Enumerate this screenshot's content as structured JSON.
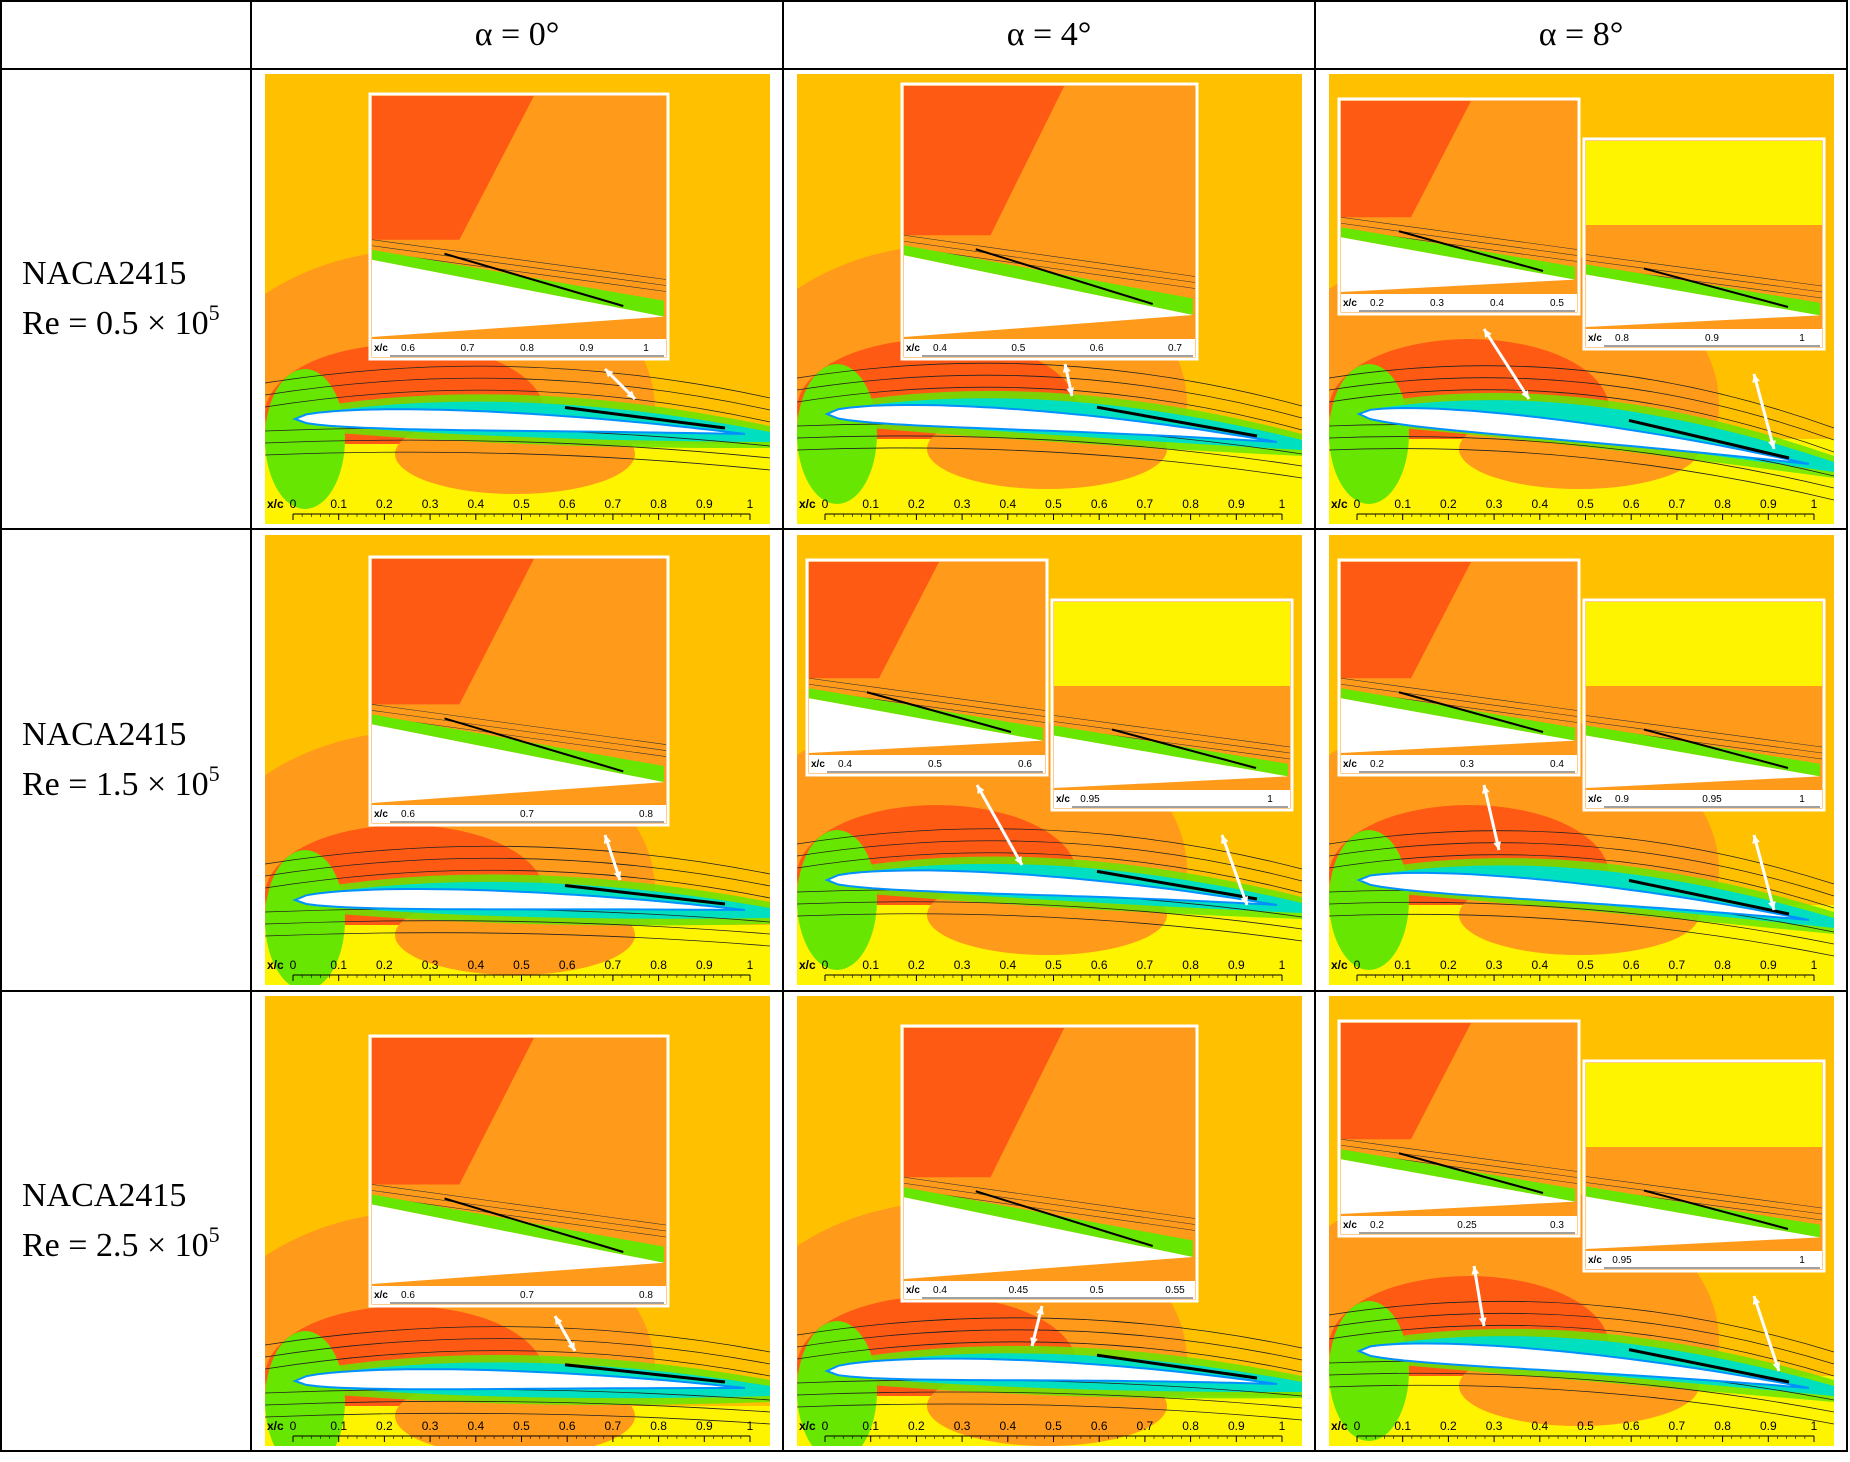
{
  "columns": [
    {
      "label": "α = 0°"
    },
    {
      "label": "α = 4°"
    },
    {
      "label": "α = 8°"
    }
  ],
  "rows": [
    {
      "airfoil": "NACA2415",
      "re_prefix": "Re = 0.5 × 10",
      "re_exp": "5"
    },
    {
      "airfoil": "NACA2415",
      "re_prefix": "Re = 1.5 × 10",
      "re_exp": "5"
    },
    {
      "airfoil": "NACA2415",
      "re_prefix": "Re = 2.5 × 10",
      "re_exp": "5"
    }
  ],
  "axis": {
    "label": "x/c",
    "ticks": [
      "0",
      "0.1",
      "0.2",
      "0.3",
      "0.4",
      "0.5",
      "0.6",
      "0.7",
      "0.8",
      "0.9",
      "1"
    ]
  },
  "colors": {
    "background": "#ffc000",
    "orange": "#ff9a1a",
    "red": "#ff5a14",
    "darkred": "#ff2000",
    "yellow": "#ffe000",
    "lightyellow": "#fff400",
    "green": "#66e600",
    "cyan": "#00e0c0",
    "blue": "#0090ff",
    "inset_frame": "#ffffff"
  },
  "panels": [
    {
      "row": 0,
      "col": 0,
      "insets": [
        {
          "label": "x/c",
          "ticks": [
            "0.6",
            "0.7",
            "0.8",
            "0.9",
            "1"
          ]
        }
      ]
    },
    {
      "row": 0,
      "col": 1,
      "insets": [
        {
          "label": "x/c",
          "ticks": [
            "0.4",
            "0.5",
            "0.6",
            "0.7"
          ]
        }
      ]
    },
    {
      "row": 0,
      "col": 2,
      "insets": [
        {
          "label": "x/c",
          "ticks": [
            "0.2",
            "0.3",
            "0.4",
            "0.5"
          ]
        },
        {
          "label": "x/c",
          "ticks": [
            "0.8",
            "0.9",
            "1"
          ]
        }
      ]
    },
    {
      "row": 1,
      "col": 0,
      "insets": [
        {
          "label": "x/c",
          "ticks": [
            "0.6",
            "0.7",
            "0.8"
          ]
        }
      ]
    },
    {
      "row": 1,
      "col": 1,
      "insets": [
        {
          "label": "x/c",
          "ticks": [
            "0.4",
            "0.5",
            "0.6"
          ]
        },
        {
          "label": "x/c",
          "ticks": [
            "0.95",
            "1"
          ]
        }
      ]
    },
    {
      "row": 1,
      "col": 2,
      "insets": [
        {
          "label": "x/c",
          "ticks": [
            "0.2",
            "0.3",
            "0.4"
          ]
        },
        {
          "label": "x/c",
          "ticks": [
            "0.9",
            "0.95",
            "1"
          ]
        }
      ]
    },
    {
      "row": 2,
      "col": 0,
      "insets": [
        {
          "label": "x/c",
          "ticks": [
            "0.6",
            "0.7",
            "0.8"
          ]
        }
      ]
    },
    {
      "row": 2,
      "col": 1,
      "insets": [
        {
          "label": "x/c",
          "ticks": [
            "0.4",
            "0.45",
            "0.5",
            "0.55"
          ]
        }
      ]
    },
    {
      "row": 2,
      "col": 2,
      "insets": [
        {
          "label": "x/c",
          "ticks": [
            "0.2",
            "0.25",
            "0.3"
          ]
        },
        {
          "label": "x/c",
          "ticks": [
            "0.95",
            "1"
          ]
        }
      ]
    }
  ]
}
